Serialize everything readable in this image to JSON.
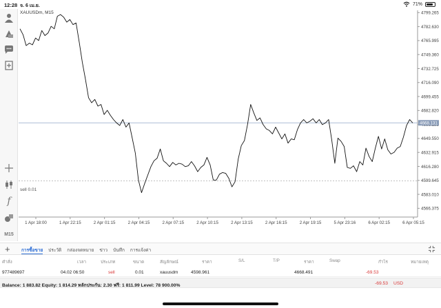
{
  "status": {
    "time": "12:28",
    "date": "จ. 6 เม.ย.",
    "battery": "71%",
    "battery_level": 0.71
  },
  "chart": {
    "symbol_label": "XAUUSDm, M15",
    "position_label": "sell 0.01",
    "current_price": "4668.131",
    "icons": [
      "profile-icon",
      "indicators-icon",
      "chat-icon",
      "new-order-icon",
      "crosshair-icon",
      "candlestick-icon",
      "function-icon",
      "objects-icon"
    ],
    "timeframe": "M15"
  },
  "chart_data": {
    "type": "line",
    "title": "XAUUSDm, M15",
    "x_ticks": [
      "1 Apr 18:00",
      "1 Apr 22:15",
      "2 Apr 01:15",
      "2 Apr 04:15",
      "2 Apr 07:15",
      "2 Apr 10:15",
      "2 Apr 13:15",
      "2 Apr 16:15",
      "2 Apr 19:15",
      "5 Apr 23:16",
      "6 Apr 02:15",
      "6 Apr 05:15"
    ],
    "y_ticks": [
      4799.265,
      4782.63,
      4765.995,
      4749.36,
      4732.725,
      4716.09,
      4699.455,
      4682.82,
      4666.185,
      4649.55,
      4632.915,
      4616.28,
      4599.645,
      4583.01,
      4566.375
    ],
    "ylim": [
      4556.0,
      4802.0
    ],
    "current_price": 4668.131,
    "sell_price": 4598.961,
    "values": [
      4780,
      4773,
      4760,
      4763,
      4761,
      4769,
      4766,
      4778,
      4772,
      4775,
      4783,
      4780,
      4795,
      4797,
      4794,
      4788,
      4791,
      4785,
      4787,
      4764,
      4740,
      4720,
      4698,
      4692,
      4696,
      4688,
      4690,
      4678,
      4683,
      4677,
      4672,
      4668,
      4665,
      4672,
      4663,
      4668,
      4650,
      4632,
      4600,
      4585,
      4596,
      4606,
      4616,
      4623,
      4626,
      4637,
      4623,
      4620,
      4616,
      4621,
      4618,
      4620,
      4619,
      4616,
      4617,
      4622,
      4617,
      4610,
      4615,
      4618,
      4627,
      4618,
      4600,
      4600,
      4607,
      4609,
      4608,
      4602,
      4592,
      4598,
      4625,
      4641,
      4647,
      4666,
      4690,
      4680,
      4671,
      4674,
      4666,
      4661,
      4659,
      4655,
      4663,
      4656,
      4649,
      4655,
      4644,
      4649,
      4648,
      4660,
      4668,
      4672,
      4668,
      4670,
      4673,
      4668,
      4672,
      4666,
      4668,
      4672,
      4648,
      4620,
      4650,
      4646,
      4640,
      4615,
      4614,
      4617,
      4610,
      4622,
      4618,
      4638,
      4628,
      4622,
      4638,
      4652,
      4637,
      4649,
      4636,
      4631,
      4633,
      4638,
      4640,
      4651,
      4665,
      4672,
      4668
    ]
  },
  "tabs": [
    "การซื้อขาย",
    "ประวัติ",
    "กล่องจดหมาย",
    "ข่าว",
    "บันทึก",
    "การแจ้งค่า"
  ],
  "table": {
    "headers": [
      "คำสั่ง",
      "เวลา",
      "ประเภท",
      "ขนาด",
      "สัญลักษณ์",
      "ราคา",
      "S/L",
      "T/P",
      "ราคา",
      "Swap",
      "กำไร",
      "หมายเหตุ"
    ],
    "row": {
      "order": "977489697",
      "time": "04.02 06:50",
      "type": "sell",
      "size": "0.01",
      "symbol": "xauusdm",
      "open_price": "4598.961",
      "sl": "",
      "tp": "",
      "price": "4668.491",
      "swap": "",
      "profit": "-69.53",
      "note": ""
    }
  },
  "balance": {
    "text": "Balance: 1 883.82 Equity: 1 814.29 หลักประกัน: 2.30 ฟรี: 1 811.99 Level: 78 900.00%",
    "profit": "-69.53",
    "currency": "USD"
  },
  "colors": {
    "accent": "#2f6fd6",
    "loss": "#d93a3a",
    "price_line": "#8fa6c8"
  }
}
